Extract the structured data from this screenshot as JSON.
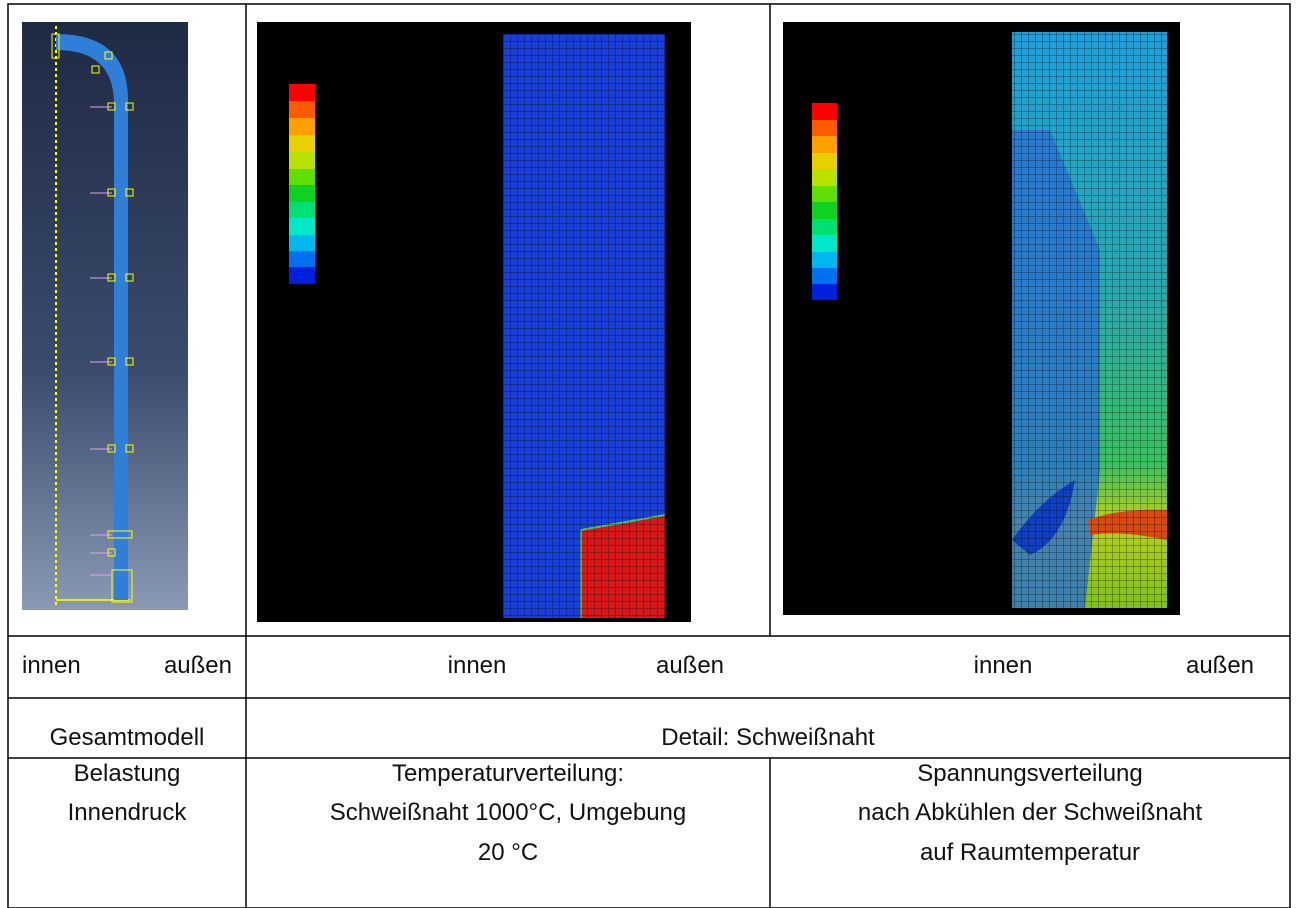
{
  "table": {
    "rows": [
      [
        [
          "innen",
          "außen"
        ],
        [
          "innen",
          "außen"
        ],
        [
          "innen",
          "außen"
        ]
      ],
      [
        "Gesamtmodell",
        "Detail: Schweißnaht"
      ],
      [
        [
          "Belastung",
          "Innendruck"
        ],
        [
          "Temperaturverteilung:",
          "Schweißnaht 1000°C, Umgebung",
          "20 °C"
        ],
        [
          "Spannungsverteilung",
          "nach Abkühlen der Schweißnaht",
          "auf Raumtemperatur"
        ]
      ]
    ]
  }
}
